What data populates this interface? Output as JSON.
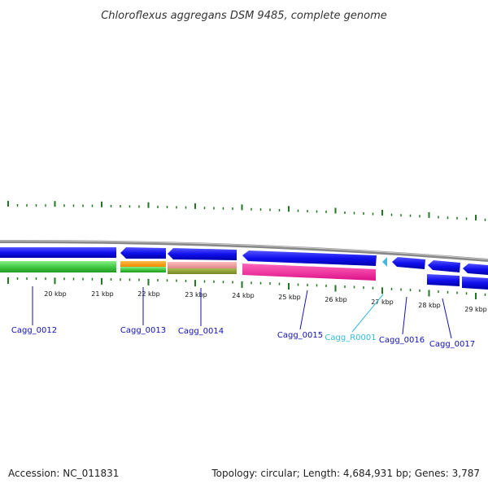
{
  "title": "Chloroflexus aggregans DSM 9485, complete genome",
  "footer": {
    "accession": "Accession: NC_011831",
    "summary": "Topology: circular; Length: 4,684,931 bp; Genes: 3,787"
  },
  "colors": {
    "forward_cds": "#1010ee",
    "backward_cds": "#1010ee",
    "trna": "#44bbdd",
    "tick": "#227722",
    "backbone": "#888888",
    "label_blue": "#1010bb",
    "label_cyan": "#33bbdd",
    "green_track": "#44cc44",
    "orange_track": "#ff9900",
    "pink_light": "#ee9999",
    "olive_track": "#889933",
    "magenta_track": "#ee2299"
  },
  "scale": {
    "unit": "kbp",
    "labels": [
      "20 kbp",
      "21 kbp",
      "22 kbp",
      "23 kbp",
      "24 kbp",
      "25 kbp",
      "26 kbp",
      "27 kbp",
      "28 kbp",
      "29 kbp"
    ]
  },
  "genes": [
    {
      "id": "Cagg_0012",
      "type": "CDS"
    },
    {
      "id": "Cagg_0013",
      "type": "CDS"
    },
    {
      "id": "Cagg_0014",
      "type": "CDS"
    },
    {
      "id": "Cagg_0015",
      "type": "CDS"
    },
    {
      "id": "Cagg_R0001",
      "type": "tRNA"
    },
    {
      "id": "Cagg_0016",
      "type": "CDS"
    },
    {
      "id": "Cagg_0017",
      "type": "CDS"
    }
  ]
}
